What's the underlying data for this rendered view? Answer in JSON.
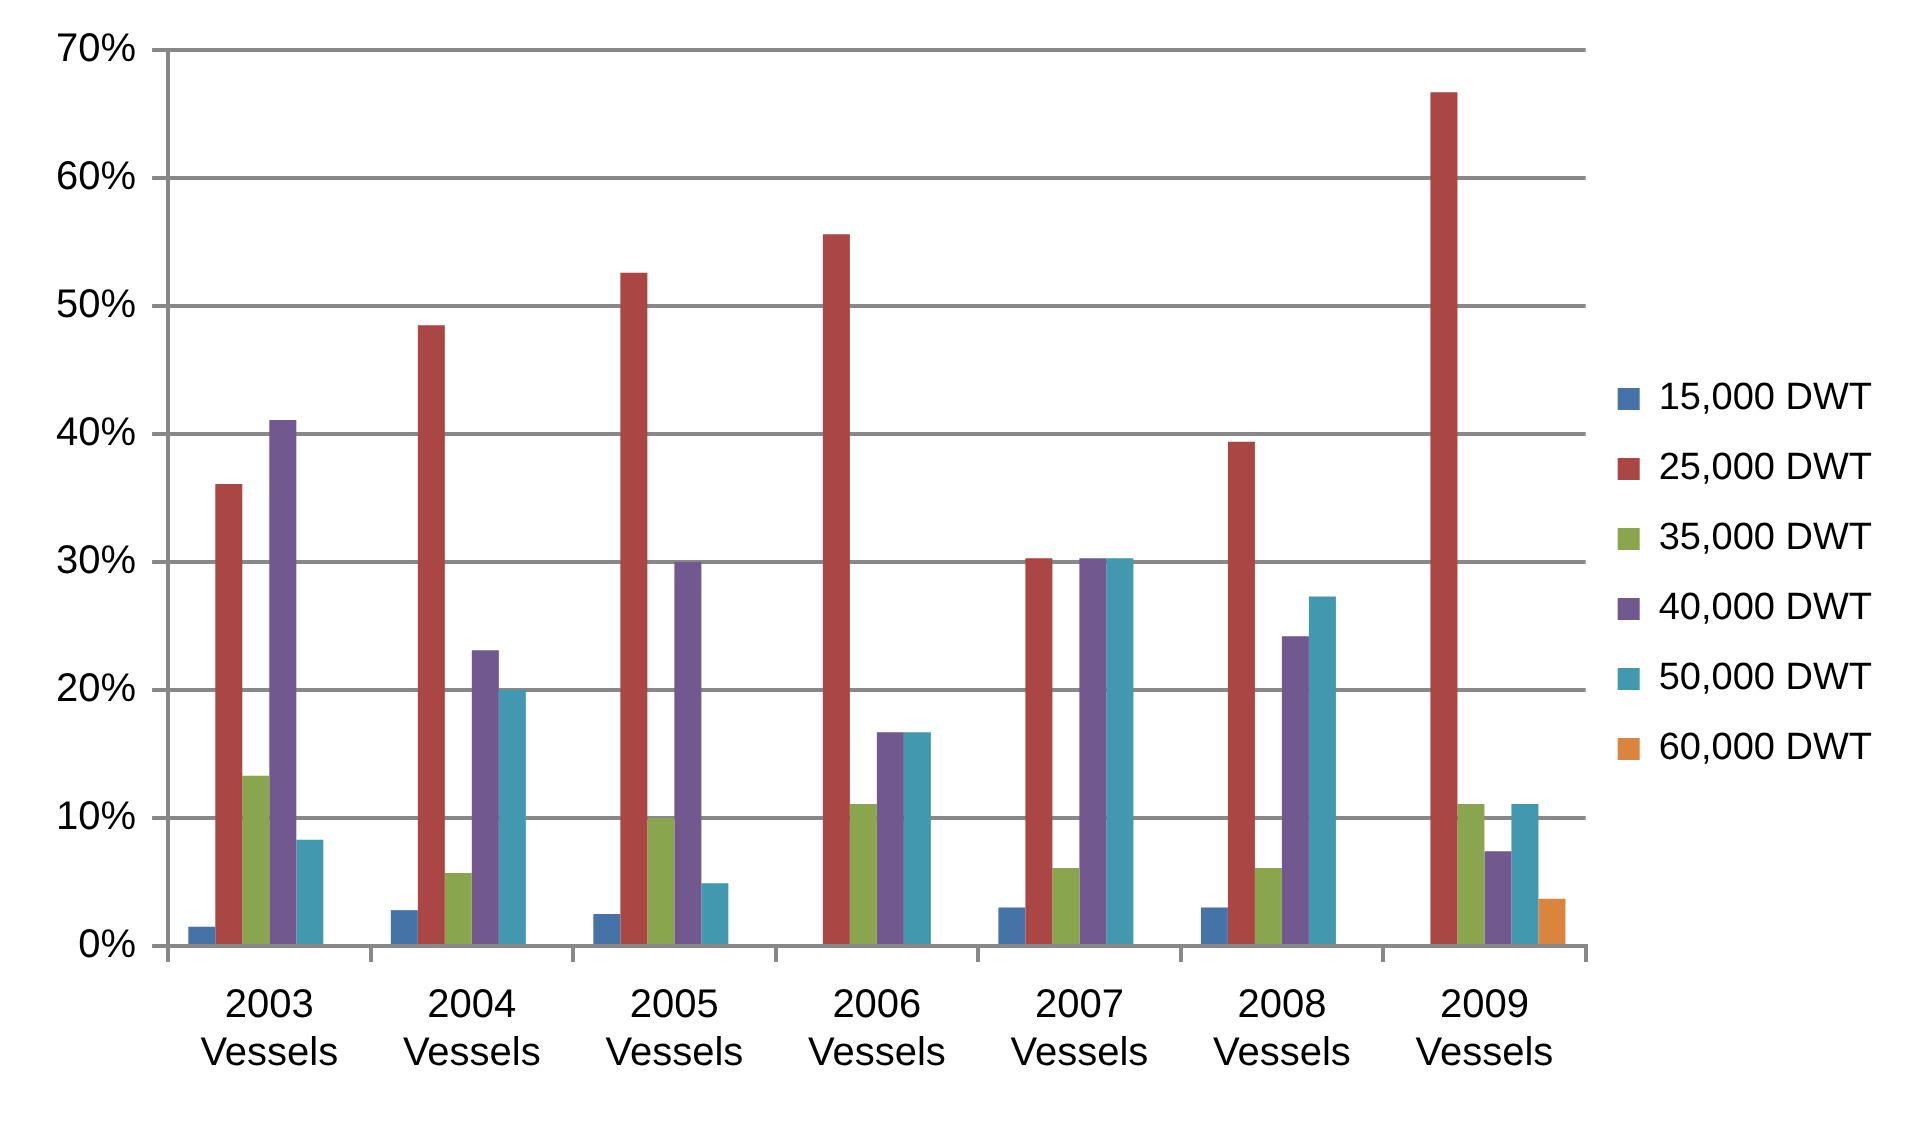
{
  "chart_data": {
    "type": "bar",
    "categories": [
      "2003 Vessels",
      "2004 Vessels",
      "2005 Vessels",
      "2006 Vessels",
      "2007 Vessels",
      "2008 Vessels",
      "2009 Vessels"
    ],
    "series": [
      {
        "name": "15,000 DWT",
        "color": "#4572a7",
        "values": [
          1.5,
          2.8,
          2.5,
          null,
          3.0,
          3.0,
          null
        ]
      },
      {
        "name": "25,000 DWT",
        "color": "#aa4643",
        "values": [
          36.1,
          48.5,
          52.6,
          55.6,
          30.3,
          39.4,
          66.7
        ]
      },
      {
        "name": "35,000 DWT",
        "color": "#89a54e",
        "values": [
          13.3,
          5.7,
          10.0,
          11.1,
          6.1,
          6.1,
          11.1
        ]
      },
      {
        "name": "40,000 DWT",
        "color": "#71588f",
        "values": [
          41.1,
          23.1,
          30.0,
          16.7,
          30.3,
          24.2,
          7.4
        ]
      },
      {
        "name": "50,000 DWT",
        "color": "#4198af",
        "values": [
          8.3,
          20.0,
          4.9,
          16.7,
          30.3,
          27.3,
          11.1
        ]
      },
      {
        "name": "60,000 DWT",
        "color": "#db843d",
        "values": [
          null,
          null,
          null,
          null,
          null,
          null,
          3.7
        ]
      }
    ],
    "ylim": [
      0,
      70
    ],
    "yticks": [
      {
        "value": 0,
        "label": "0%"
      },
      {
        "value": 10,
        "label": "10%"
      },
      {
        "value": 20,
        "label": "20%"
      },
      {
        "value": 30,
        "label": "30%"
      },
      {
        "value": 40,
        "label": "40%"
      },
      {
        "value": 50,
        "label": "50%"
      },
      {
        "value": 60,
        "label": "60%"
      },
      {
        "value": 70,
        "label": "70%"
      }
    ],
    "grid": "y",
    "legend": "right"
  }
}
